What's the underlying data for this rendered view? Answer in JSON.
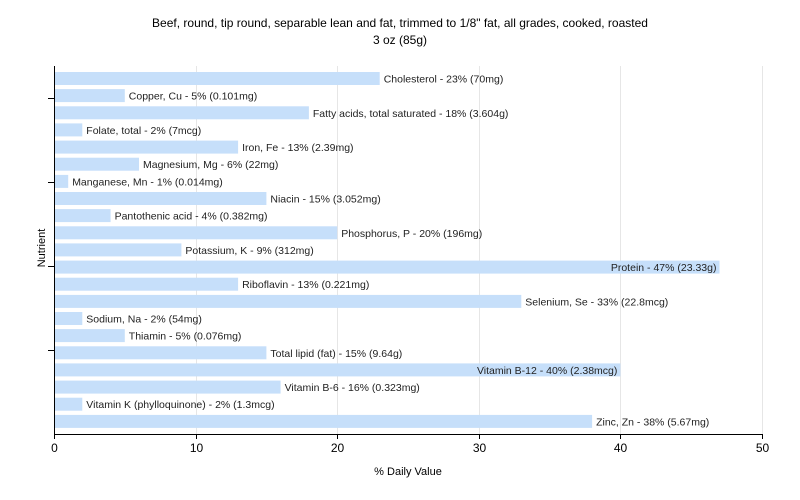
{
  "chart_data": {
    "type": "bar",
    "orientation": "horizontal",
    "title": "Beef, round, tip round, separable lean and fat, trimmed to 1/8\" fat, all grades, cooked, roasted",
    "subtitle": "3 oz (85g)",
    "xlabel": "% Daily Value",
    "ylabel": "Nutrient",
    "xlim": [
      0,
      50
    ],
    "xticks": [
      0,
      10,
      20,
      30,
      40,
      50
    ],
    "grid": true,
    "bar_color": "#c6dffa",
    "categories": [
      "Cholesterol",
      "Copper, Cu",
      "Fatty acids, total saturated",
      "Folate, total",
      "Iron, Fe",
      "Magnesium, Mg",
      "Manganese, Mn",
      "Niacin",
      "Pantothenic acid",
      "Phosphorus, P",
      "Potassium, K",
      "Protein",
      "Riboflavin",
      "Selenium, Se",
      "Sodium, Na",
      "Thiamin",
      "Total lipid (fat)",
      "Vitamin B-12",
      "Vitamin B-6",
      "Vitamin K (phylloquinone)",
      "Zinc, Zn"
    ],
    "values": [
      23,
      5,
      18,
      2,
      13,
      6,
      1,
      15,
      4,
      20,
      9,
      47,
      13,
      33,
      2,
      5,
      15,
      40,
      16,
      2,
      38
    ],
    "labels": [
      "Cholesterol - 23% (70mg)",
      "Copper, Cu - 5% (0.101mg)",
      "Fatty acids, total saturated - 18% (3.604g)",
      "Folate, total - 2% (7mcg)",
      "Iron, Fe - 13% (2.39mg)",
      "Magnesium, Mg - 6% (22mg)",
      "Manganese, Mn - 1% (0.014mg)",
      "Niacin - 15% (3.052mg)",
      "Pantothenic acid - 4% (0.382mg)",
      "Phosphorus, P - 20% (196mg)",
      "Potassium, K - 9% (312mg)",
      "Protein - 47% (23.33g)",
      "Riboflavin - 13% (0.221mg)",
      "Selenium, Se - 33% (22.8mcg)",
      "Sodium, Na - 2% (54mg)",
      "Thiamin - 5% (0.076mg)",
      "Total lipid (fat) - 15% (9.64g)",
      "Vitamin B-12 - 40% (2.38mcg)",
      "Vitamin B-6 - 16% (0.323mg)",
      "Vitamin K (phylloquinone) - 2% (1.3mcg)",
      "Zinc, Zn - 38% (5.67mg)"
    ]
  }
}
